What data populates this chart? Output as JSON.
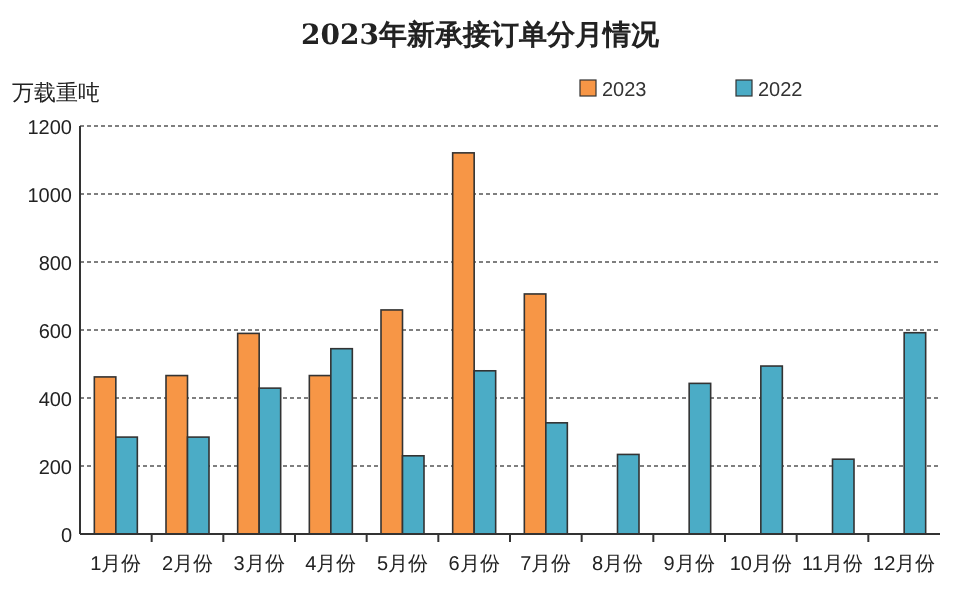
{
  "chart_data": {
    "type": "bar",
    "title": "2023年新承接订单分月情况",
    "ylabel": "万载重吨",
    "categories": [
      "1月份",
      "2月份",
      "3月份",
      "4月份",
      "5月份",
      "6月份",
      "7月份",
      "8月份",
      "9月份",
      "10月份",
      "11月份",
      "12月份"
    ],
    "series": [
      {
        "name": "2023",
        "color": "#f79646",
        "values": [
          462,
          466,
          590,
          466,
          659,
          1121,
          706,
          null,
          null,
          null,
          null,
          null
        ]
      },
      {
        "name": "2022",
        "color": "#4bacc6",
        "values": [
          285,
          285,
          429,
          545,
          230,
          480,
          327,
          234,
          443,
          494,
          220,
          592
        ]
      }
    ],
    "ylim": [
      0,
      1200
    ],
    "yticks": [
      0,
      200,
      400,
      600,
      800,
      1000,
      1200
    ],
    "grid": "y",
    "legend": "top"
  }
}
